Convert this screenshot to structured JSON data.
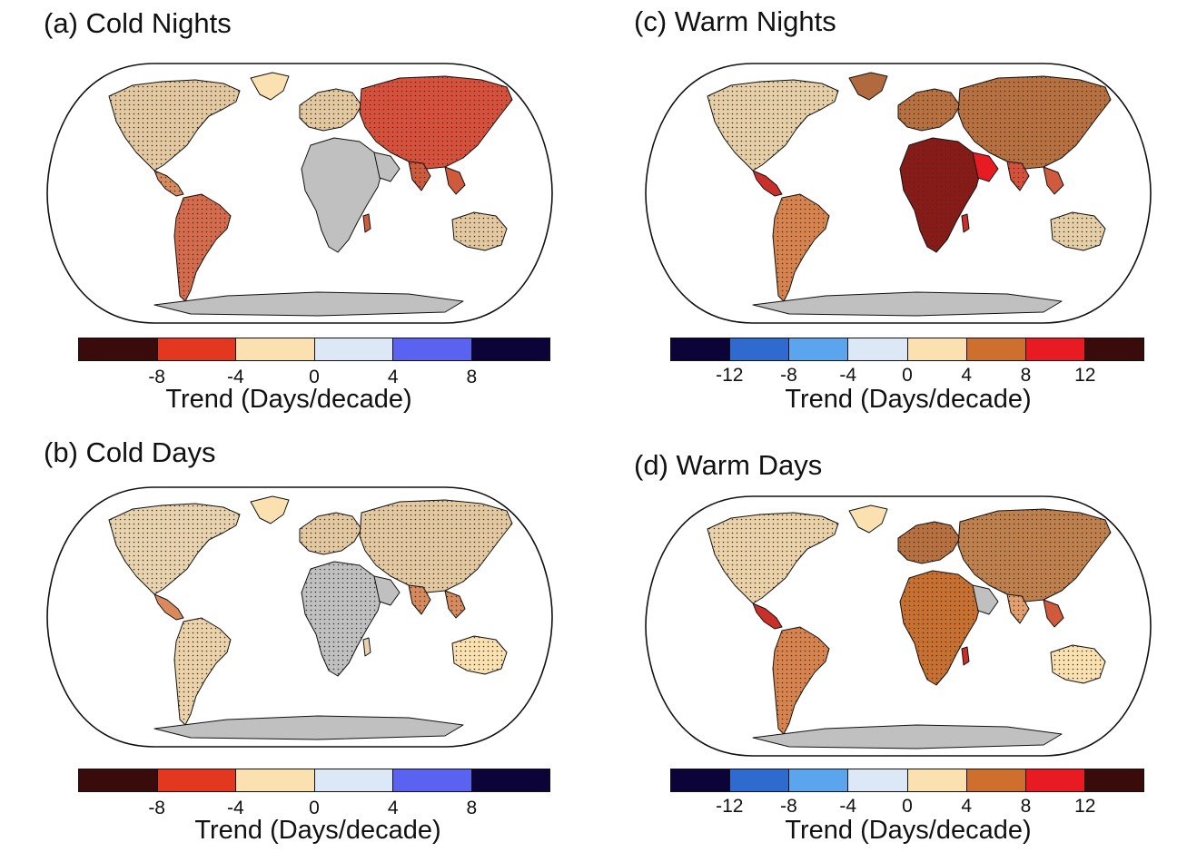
{
  "panels": [
    {
      "id": "a",
      "title": "(a) Cold Nights",
      "colorbar": {
        "colors": [
          "#3a0b0b",
          "#e3381f",
          "#fbe0b0",
          "#dde8f6",
          "#5a62f2",
          "#0c0338"
        ],
        "tick_labels": [
          "-8",
          "-4",
          "0",
          "4",
          "8"
        ],
        "label": "Trend (Days/decade)"
      }
    },
    {
      "id": "b",
      "title": "(b) Cold Days",
      "colorbar": {
        "colors": [
          "#3a0b0b",
          "#e3381f",
          "#fbe0b0",
          "#dde8f6",
          "#5a62f2",
          "#0c0338"
        ],
        "tick_labels": [
          "-8",
          "-4",
          "0",
          "4",
          "8"
        ],
        "label": "Trend (Days/decade)"
      }
    },
    {
      "id": "c",
      "title": "(c) Warm Nights",
      "colorbar": {
        "colors": [
          "#0c0338",
          "#2f6bcf",
          "#5aa5ee",
          "#dde8f6",
          "#fbe0b0",
          "#cf6f2e",
          "#e81b22",
          "#3a0b0b"
        ],
        "tick_labels": [
          "-12",
          "-8",
          "-4",
          "0",
          "4",
          "8",
          "12"
        ],
        "label": "Trend (Days/decade)"
      }
    },
    {
      "id": "d",
      "title": "(d) Warm Days",
      "colorbar": {
        "colors": [
          "#0c0338",
          "#2f6bcf",
          "#5aa5ee",
          "#dde8f6",
          "#fbe0b0",
          "#cf6f2e",
          "#e81b22",
          "#3a0b0b"
        ],
        "tick_labels": [
          "-12",
          "-8",
          "-4",
          "0",
          "4",
          "8",
          "12"
        ],
        "label": "Trend (Days/decade)"
      }
    }
  ],
  "colors": {
    "no_data": "#c0c0c0",
    "coastline": "#111111",
    "stipple": "#333333"
  }
}
